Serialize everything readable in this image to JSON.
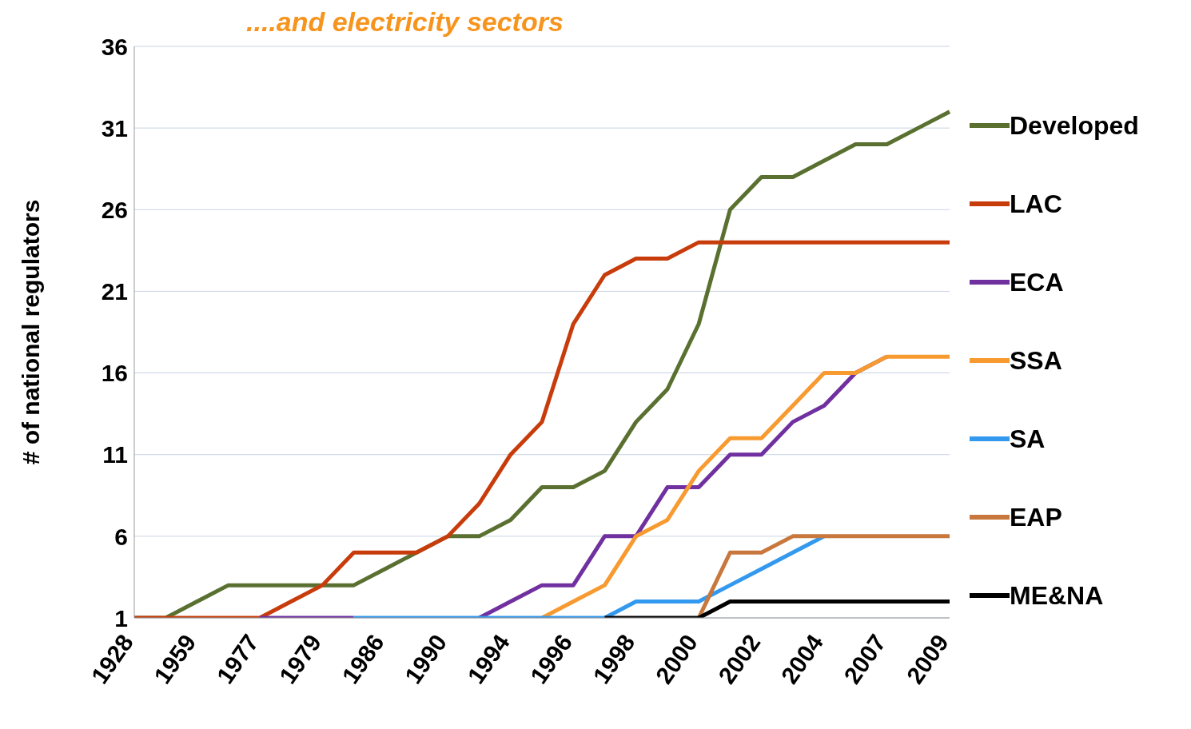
{
  "chart_data": {
    "type": "line",
    "title": "....and electricity sectors",
    "ylabel": "# of national regulators",
    "categories": [
      "1928",
      null,
      "1959",
      null,
      "1977",
      null,
      "1979",
      null,
      "1986",
      null,
      "1990",
      null,
      "1994",
      null,
      "1996",
      null,
      "1998",
      null,
      "2000",
      null,
      "2002",
      null,
      "2004",
      null,
      "2007",
      null,
      "2009"
    ],
    "series": [
      {
        "name": "Developed",
        "color": "#5a7030",
        "values": [
          1,
          1,
          2,
          3,
          3,
          3,
          3,
          3,
          4,
          5,
          6,
          6,
          7,
          9,
          9,
          10,
          13,
          15,
          19,
          26,
          28,
          28,
          29,
          30,
          30,
          31,
          32
        ]
      },
      {
        "name": "LAC",
        "color": "#c83c0c",
        "values": [
          1,
          1,
          1,
          1,
          1,
          2,
          3,
          5,
          5,
          5,
          6,
          8,
          11,
          13,
          19,
          22,
          23,
          23,
          24,
          24,
          24,
          24,
          24,
          24,
          24,
          24,
          24
        ]
      },
      {
        "name": "ECA",
        "color": "#7030a0",
        "values": [
          null,
          null,
          null,
          null,
          1,
          1,
          1,
          1,
          null,
          null,
          null,
          1,
          2,
          3,
          3,
          6,
          6,
          9,
          9,
          11,
          11,
          13,
          14,
          16,
          17,
          null,
          null
        ]
      },
      {
        "name": "SSA",
        "color": "#f79a30",
        "values": [
          null,
          null,
          null,
          null,
          null,
          null,
          null,
          null,
          null,
          null,
          null,
          null,
          null,
          1,
          2,
          3,
          6,
          7,
          10,
          12,
          12,
          14,
          16,
          16,
          17,
          17,
          17
        ]
      },
      {
        "name": "SA",
        "color": "#3399ee",
        "values": [
          null,
          null,
          null,
          null,
          null,
          null,
          null,
          1,
          1,
          1,
          1,
          1,
          1,
          1,
          1,
          1,
          2,
          2,
          2,
          3,
          4,
          5,
          6,
          null,
          null,
          null,
          null
        ]
      },
      {
        "name": "EAP",
        "color": "#c8783c",
        "values": [
          null,
          null,
          null,
          null,
          null,
          null,
          null,
          null,
          null,
          null,
          null,
          null,
          null,
          null,
          null,
          null,
          null,
          null,
          1,
          5,
          5,
          6,
          6,
          6,
          6,
          6,
          6
        ]
      },
      {
        "name": "ME&NA",
        "color": "#000000",
        "values": [
          null,
          null,
          null,
          null,
          null,
          null,
          null,
          null,
          null,
          null,
          null,
          null,
          null,
          null,
          null,
          1,
          1,
          1,
          1,
          2,
          2,
          2,
          2,
          2,
          2,
          2,
          2
        ]
      }
    ],
    "ylim": [
      1,
      36
    ],
    "yticks": [
      1,
      6,
      11,
      16,
      21,
      26,
      31,
      36
    ],
    "grid": "y",
    "legend": "right",
    "marker": "none",
    "line_style": "solid"
  }
}
